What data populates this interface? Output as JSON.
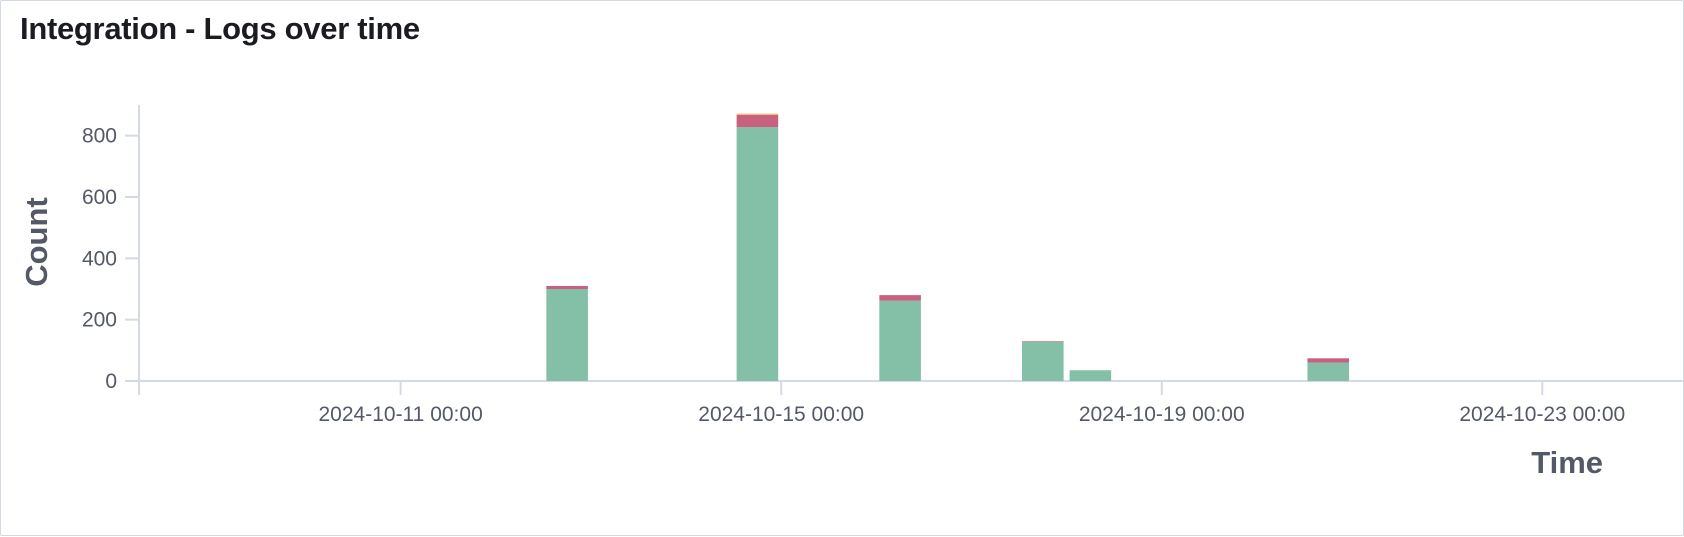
{
  "panel": {
    "title": "Integration - Logs over time"
  },
  "chart_data": {
    "type": "bar",
    "stacked": true,
    "title": "Integration - Logs over time",
    "xlabel": "Time",
    "ylabel": "Count",
    "ylim": [
      0,
      900
    ],
    "yticks": [
      0,
      200,
      400,
      600,
      800
    ],
    "xlim": [
      "2024-10-08 06:00",
      "2024-10-24 12:00"
    ],
    "xticks": [
      "2024-10-11 00:00",
      "2024-10-15 00:00",
      "2024-10-19 00:00",
      "2024-10-23 00:00"
    ],
    "bar_interval_hours": 12,
    "x": [
      "2024-10-12 12:00",
      "2024-10-14 12:00",
      "2024-10-16 00:00",
      "2024-10-17 12:00",
      "2024-10-18 00:00",
      "2024-10-20 12:00"
    ],
    "series": [
      {
        "color": "#84bfa7",
        "values": [
          300,
          828,
          262,
          128,
          35,
          60
        ]
      },
      {
        "color": "#c8607f",
        "values": [
          10,
          40,
          18,
          2,
          0,
          14
        ]
      },
      {
        "color": "#e7c16b",
        "values": [
          0,
          4,
          0,
          0,
          0,
          0
        ]
      }
    ],
    "grid": false,
    "legend": "none"
  }
}
